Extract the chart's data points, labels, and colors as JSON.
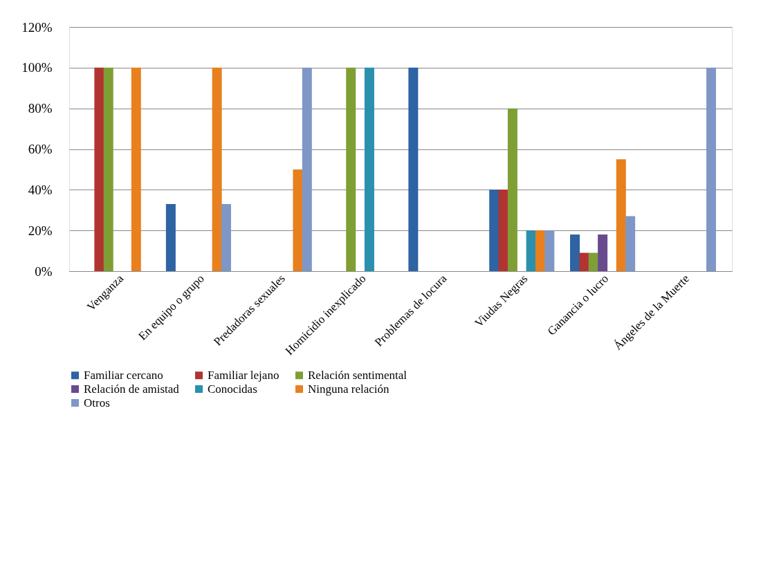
{
  "chart_data": {
    "type": "bar",
    "categories": [
      "Venganza",
      "En equipo o grupo",
      "Predadoras sexuales",
      "Homicidio inexplicado",
      "Problemas de locura",
      "Viudas Negras",
      "Ganancia o lucro",
      "Ángeles de la Muerte"
    ],
    "series": [
      {
        "name": "Familiar cercano",
        "color": "#2e63a4",
        "values": [
          null,
          33,
          null,
          null,
          100,
          40,
          18,
          null
        ]
      },
      {
        "name": "Familiar lejano",
        "color": "#b13431",
        "values": [
          100,
          null,
          null,
          null,
          null,
          40,
          9,
          null
        ]
      },
      {
        "name": "Relación sentimental",
        "color": "#7f9f35",
        "values": [
          100,
          null,
          null,
          100,
          null,
          80,
          9,
          null
        ]
      },
      {
        "name": "Relación de amistad",
        "color": "#6a4a8e",
        "values": [
          null,
          null,
          null,
          null,
          null,
          null,
          18,
          null
        ]
      },
      {
        "name": "Conocidas",
        "color": "#2a90ad",
        "values": [
          null,
          null,
          null,
          100,
          null,
          20,
          null,
          null
        ]
      },
      {
        "name": "Ninguna relación",
        "color": "#e8801e",
        "values": [
          100,
          100,
          50,
          null,
          null,
          20,
          55,
          null
        ]
      },
      {
        "name": "Otros",
        "color": "#7f97c6",
        "values": [
          null,
          33,
          100,
          null,
          null,
          20,
          27,
          100
        ]
      }
    ],
    "ylim": [
      0,
      120
    ],
    "yticks": [
      {
        "value": 0,
        "label": "0%"
      },
      {
        "value": 20,
        "label": "20%"
      },
      {
        "value": 40,
        "label": "40%"
      },
      {
        "value": 60,
        "label": "60%"
      },
      {
        "value": 80,
        "label": "80%"
      },
      {
        "value": 100,
        "label": "100%"
      },
      {
        "value": 120,
        "label": "120%"
      }
    ],
    "grid": "y",
    "legend": "bottom"
  }
}
